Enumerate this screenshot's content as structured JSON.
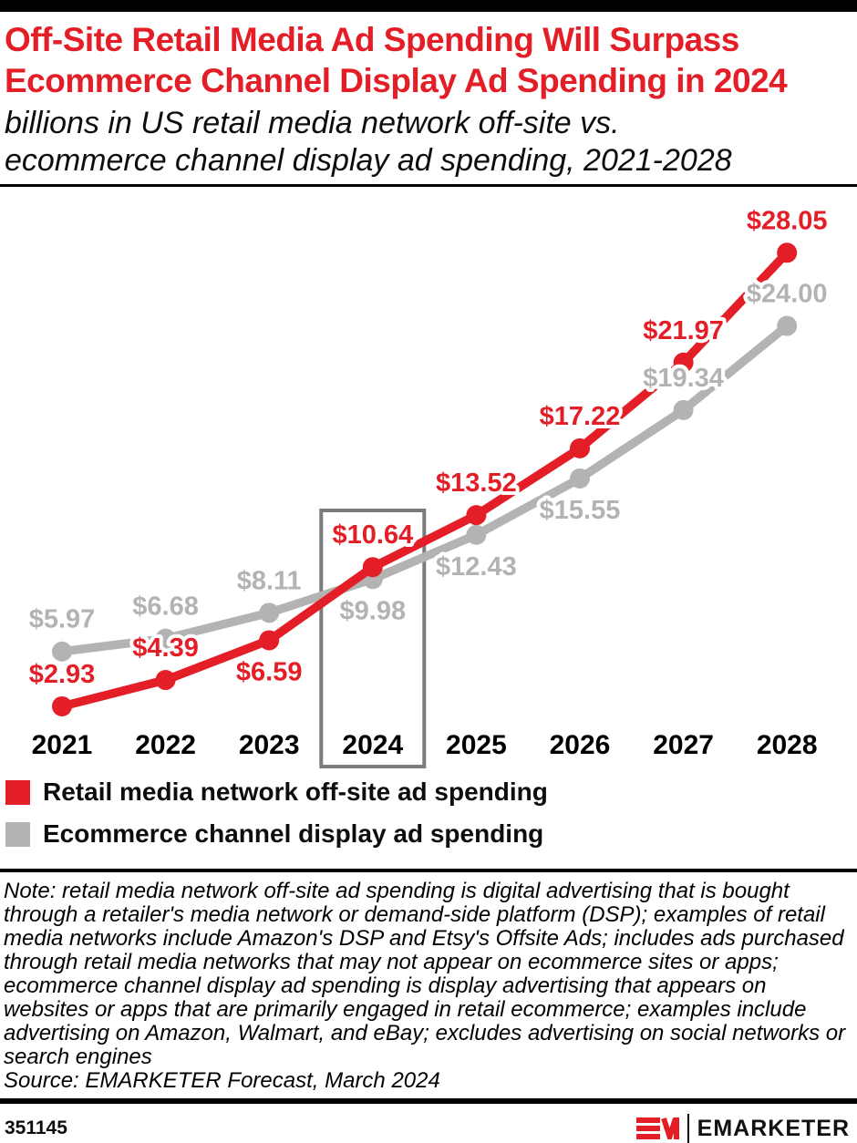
{
  "header": {
    "title_line1": "Off-Site Retail Media Ad Spending Will Surpass",
    "title_line2": "Ecommerce Channel Display Ad Spending in 2024",
    "subtitle_line1": "billions in US retail media network off-site vs.",
    "subtitle_line2": "ecommerce channel display ad spending, 2021-2028",
    "title_color": "#E41E26"
  },
  "chart_data": {
    "type": "line",
    "categories": [
      "2021",
      "2022",
      "2023",
      "2024",
      "2025",
      "2026",
      "2027",
      "2028"
    ],
    "series": [
      {
        "name": "Retail media network off-site ad spending",
        "color": "#E41E26",
        "values": [
          2.93,
          4.39,
          6.59,
          10.64,
          13.52,
          17.22,
          21.97,
          28.05
        ],
        "labels": [
          "$2.93",
          "$4.39",
          "$6.59",
          "$10.64",
          "$13.52",
          "$17.22",
          "$21.97",
          "$28.05"
        ],
        "label_pos": [
          "above",
          "above",
          "below",
          "above",
          "above",
          "above",
          "above",
          "above"
        ]
      },
      {
        "name": "Ecommerce channel display ad spending",
        "color": "#B3B3B3",
        "values": [
          5.97,
          6.68,
          8.11,
          9.98,
          12.43,
          15.55,
          19.34,
          24.0
        ],
        "labels": [
          "$5.97",
          "$6.68",
          "$8.11",
          "$9.98",
          "$12.43",
          "$15.55",
          "$19.34",
          "$24.00"
        ],
        "label_pos": [
          "above",
          "above",
          "above",
          "below",
          "below",
          "below",
          "above",
          "above"
        ]
      }
    ],
    "highlight_category": "2024",
    "highlight_box_color": "#7C7C7C",
    "ylim": [
      0,
      31.7
    ],
    "grid": false,
    "legend_position": "bottom",
    "unit_prefix": "$",
    "units": "billions USD"
  },
  "note": "Note: retail media network off-site ad spending is digital advertising that is bought through a retailer's media network or demand-side platform (DSP); examples of retail media networks include Amazon's DSP and Etsy's Offsite Ads; includes ads purchased through retail media networks that may not appear on ecommerce sites or apps; ecommerce channel display ad spending is display advertising that appears on websites or apps that are primarily engaged in retail ecommerce; examples include advertising on Amazon, Walmart, and eBay; excludes advertising on social networks or search engines",
  "source": "Source: EMARKETER Forecast, March 2024",
  "footer": {
    "chart_id": "351145",
    "brand": "EMARKETER"
  }
}
